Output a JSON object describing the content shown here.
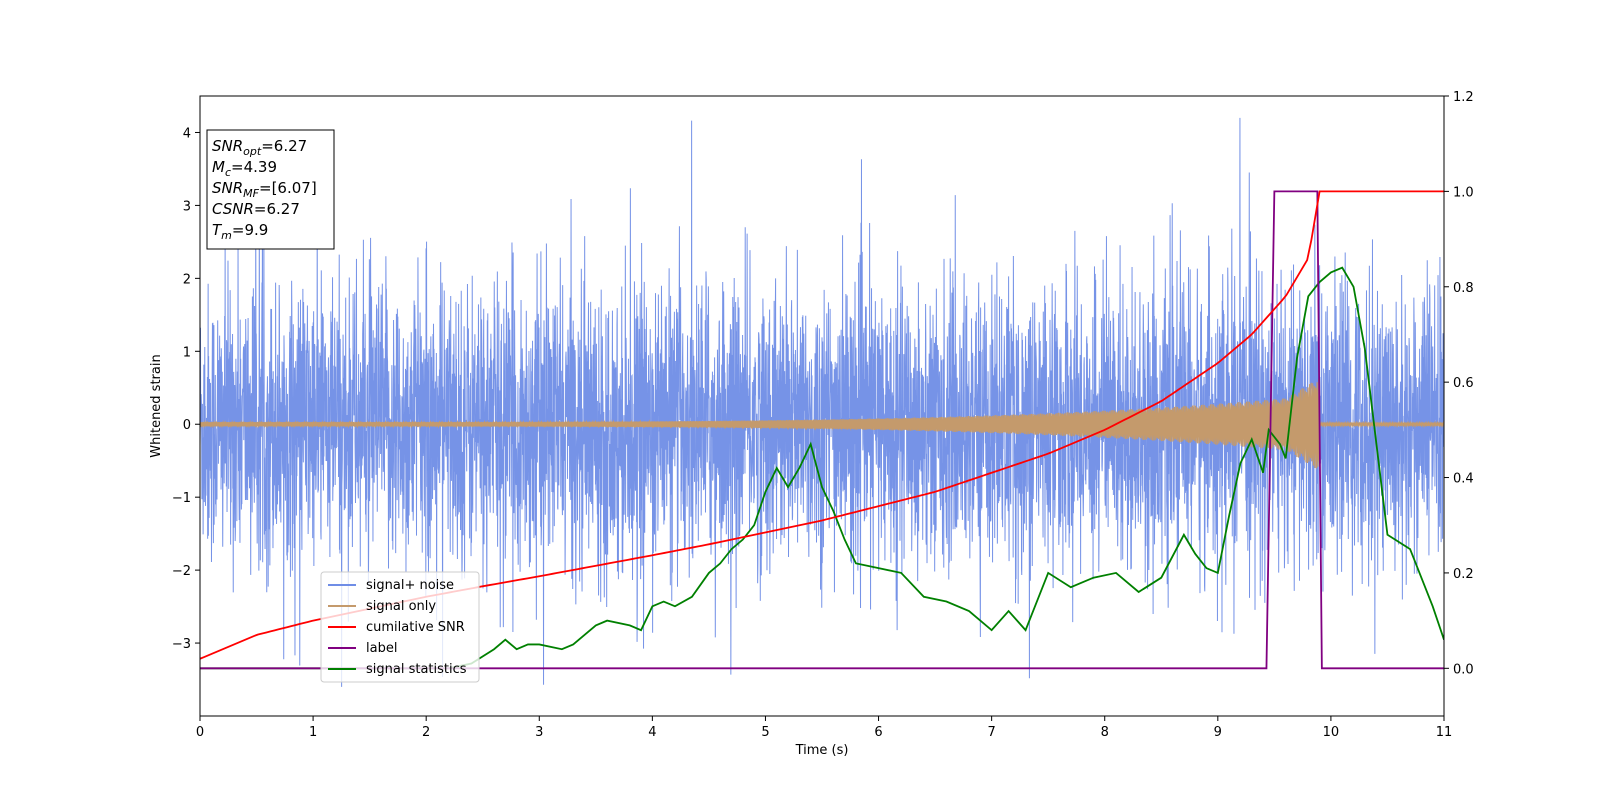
{
  "chart_data": {
    "type": "line",
    "xlabel": "Time (s)",
    "ylabel": "Whitened strain",
    "xlim": [
      0,
      11
    ],
    "ylim_left": [
      -4,
      4.5
    ],
    "ylim_right": [
      -0.1,
      1.2
    ],
    "x_ticks": [
      0,
      1,
      2,
      3,
      4,
      5,
      6,
      7,
      8,
      9,
      10,
      11
    ],
    "y_ticks_left": [
      -3,
      -2,
      -1,
      0,
      1,
      2,
      3,
      4
    ],
    "y_ticks_left_labels": [
      "−3",
      "−2",
      "−1",
      "0",
      "1",
      "2",
      "3",
      "4"
    ],
    "y_ticks_right": [
      0.0,
      0.2,
      0.4,
      0.6,
      0.8,
      1.0,
      1.2
    ],
    "y_ticks_right_labels": [
      "0.0",
      "0.2",
      "0.4",
      "0.6",
      "0.8",
      "1.0",
      "1.2"
    ],
    "grid": false,
    "legend_position": "lower-left",
    "colors": {
      "noise": "#6f8de6",
      "signal": "#c49a6c",
      "cumulative_snr": "#ff0000",
      "label": "#800080",
      "statistics": "#008000"
    },
    "annotation": [
      {
        "base": "SNR",
        "sub": "opt",
        "value": "=6.27"
      },
      {
        "base": "M",
        "sub": "c",
        "value": "=4.39"
      },
      {
        "base": "SNR",
        "sub": "MF",
        "value": "=[6.07]"
      },
      {
        "base": "CSNR",
        "sub": "",
        "value": "=6.27"
      },
      {
        "base": "T",
        "sub": "m",
        "value": "=9.9"
      }
    ],
    "series": [
      {
        "name": "signal+ noise",
        "axis": "left",
        "color": "#6f8de6",
        "description_values": "white noise approximately ±2 with peaks to ±3.5, sampled over 0–11 s",
        "envelope_max": 4.2,
        "envelope_min": -3.6
      },
      {
        "name": "signal only",
        "axis": "left",
        "color": "#c49a6c",
        "chirp": {
          "start_amp": 0.03,
          "end_amp": 0.4,
          "end_time": 9.9,
          "tail_amp": 0.02
        }
      },
      {
        "name": "cumilative SNR",
        "axis": "right",
        "color": "#ff0000",
        "x": [
          0,
          0.5,
          1,
          1.5,
          2,
          2.5,
          3,
          3.5,
          4,
          4.5,
          5,
          5.5,
          6,
          6.5,
          7,
          7.5,
          8,
          8.5,
          9,
          9.3,
          9.6,
          9.8,
          9.9,
          10,
          11
        ],
        "y": [
          0.02,
          0.07,
          0.1,
          0.125,
          0.15,
          0.172,
          0.193,
          0.215,
          0.237,
          0.26,
          0.285,
          0.31,
          0.34,
          0.37,
          0.41,
          0.45,
          0.5,
          0.56,
          0.64,
          0.7,
          0.78,
          0.86,
          1.0,
          1.0,
          1.0
        ]
      },
      {
        "name": "label",
        "axis": "right",
        "color": "#800080",
        "x": [
          0,
          9.43,
          9.5,
          9.88,
          9.92,
          11
        ],
        "y": [
          0,
          0,
          1.0,
          1.0,
          0,
          0
        ]
      },
      {
        "name": "signal statistics",
        "axis": "right",
        "color": "#008000",
        "x": [
          0,
          2.2,
          2.4,
          2.6,
          2.7,
          2.8,
          2.9,
          3.0,
          3.2,
          3.3,
          3.5,
          3.6,
          3.8,
          3.9,
          4.0,
          4.1,
          4.2,
          4.35,
          4.5,
          4.6,
          4.7,
          4.8,
          4.9,
          5.0,
          5.1,
          5.2,
          5.3,
          5.4,
          5.5,
          5.6,
          5.7,
          5.8,
          6.0,
          6.2,
          6.4,
          6.6,
          6.8,
          7.0,
          7.15,
          7.3,
          7.5,
          7.7,
          7.9,
          8.1,
          8.3,
          8.5,
          8.7,
          8.8,
          8.9,
          9.0,
          9.1,
          9.2,
          9.3,
          9.4,
          9.45,
          9.55,
          9.6,
          9.7,
          9.8,
          9.9,
          10.0,
          10.1,
          10.2,
          10.3,
          10.5,
          10.7,
          10.9,
          11.0
        ],
        "y": [
          0.0,
          0.0,
          0.01,
          0.04,
          0.06,
          0.04,
          0.05,
          0.05,
          0.04,
          0.05,
          0.09,
          0.1,
          0.09,
          0.08,
          0.13,
          0.14,
          0.13,
          0.15,
          0.2,
          0.22,
          0.25,
          0.27,
          0.3,
          0.37,
          0.42,
          0.38,
          0.42,
          0.47,
          0.38,
          0.33,
          0.27,
          0.22,
          0.21,
          0.2,
          0.15,
          0.14,
          0.12,
          0.08,
          0.12,
          0.08,
          0.2,
          0.17,
          0.19,
          0.2,
          0.16,
          0.19,
          0.28,
          0.24,
          0.21,
          0.2,
          0.32,
          0.43,
          0.48,
          0.41,
          0.5,
          0.47,
          0.44,
          0.65,
          0.78,
          0.81,
          0.83,
          0.84,
          0.8,
          0.67,
          0.28,
          0.25,
          0.13,
          0.06
        ]
      }
    ]
  }
}
